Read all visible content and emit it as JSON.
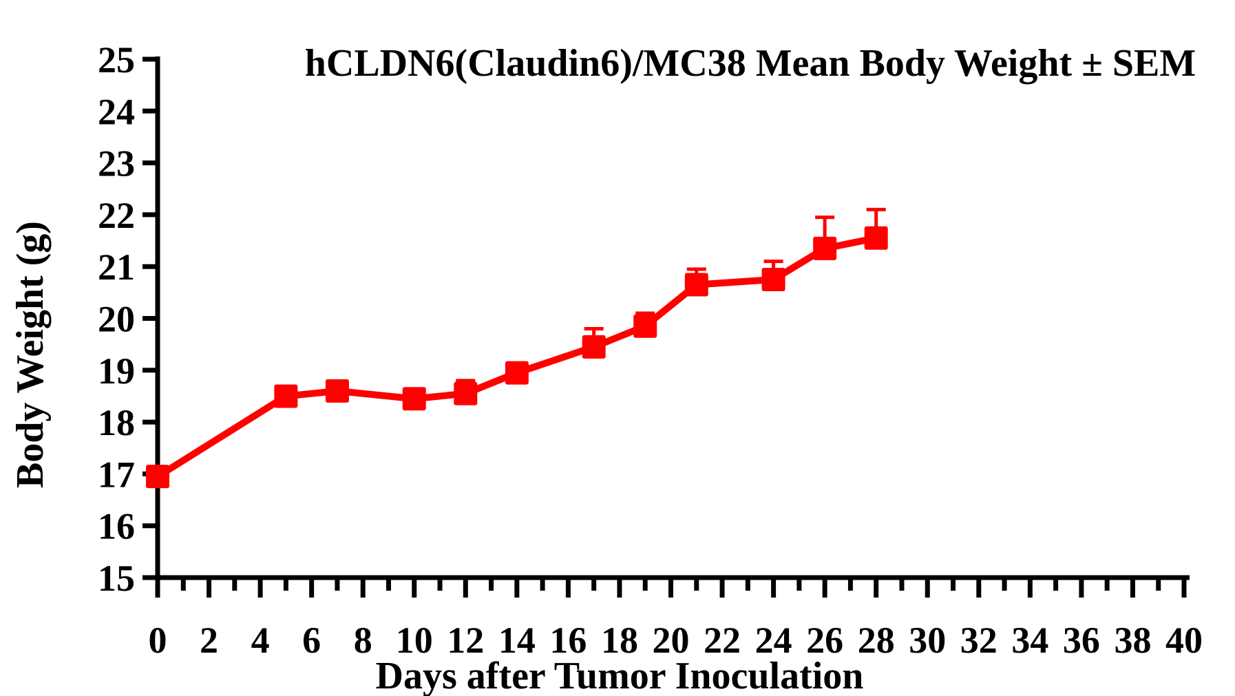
{
  "figure": {
    "background": "#ffffff",
    "axis_color": "#000000",
    "series_color": "#FF0000"
  },
  "chart_data": {
    "type": "line",
    "title": "hCLDN6(Claudin6)/MC38 Mean Body Weight ± SEM",
    "xlabel": "Days after Tumor Inoculation",
    "ylabel": "Body Weight (g)",
    "xlim": [
      0,
      40
    ],
    "ylim": [
      15,
      25
    ],
    "x_tick_label_step": 2,
    "x_minor_tick_step": 1,
    "y_tick_step": 1,
    "grid": false,
    "legend_position": "none",
    "series": [
      {
        "name": "hCLDN6(Claudin6)/MC38 Mean Body Weight",
        "color": "#FF0000",
        "marker": "square",
        "error_bars": "upper-SEM-only",
        "x": [
          0,
          5,
          7,
          10,
          12,
          14,
          17,
          19,
          21,
          24,
          26,
          28
        ],
        "y": [
          16.95,
          18.5,
          18.6,
          18.45,
          18.55,
          18.95,
          19.45,
          19.85,
          20.65,
          20.75,
          21.35,
          21.55
        ],
        "sem_upper": [
          0,
          0,
          0,
          0,
          0.25,
          0,
          0.35,
          0.25,
          0.3,
          0.35,
          0.6,
          0.55
        ]
      }
    ]
  }
}
